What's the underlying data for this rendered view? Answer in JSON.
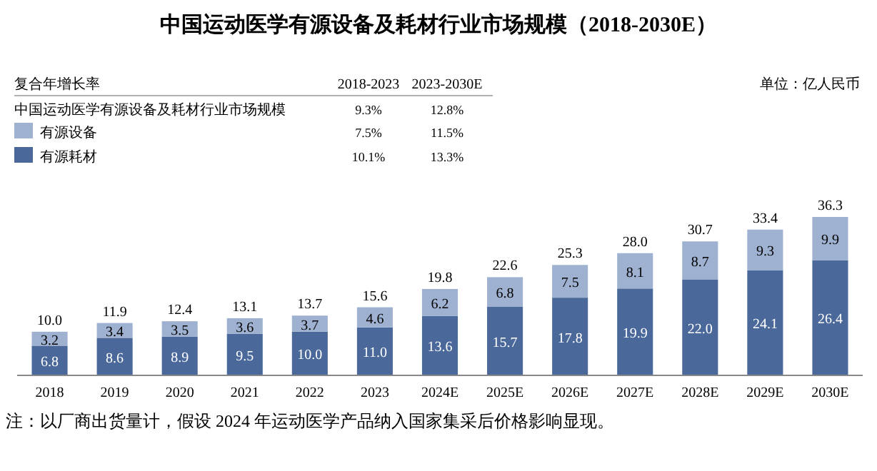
{
  "chart_data": {
    "type": "bar",
    "stacked": true,
    "legend": "top left",
    "title": "中国运动医学有源设备及耗材行业市场规模（2018-2030E）",
    "categories": [
      "2018",
      "2019",
      "2020",
      "2021",
      "2022",
      "2023",
      "2024E",
      "2025E",
      "2026E",
      "2027E",
      "2028E",
      "2029E",
      "2030E"
    ],
    "series": [
      {
        "name": "有源耗材",
        "color": "#4a6899",
        "values": [
          6.8,
          8.6,
          8.9,
          9.5,
          10.0,
          11.0,
          13.6,
          15.7,
          17.8,
          19.9,
          22.0,
          24.1,
          26.4
        ],
        "value_labels": [
          "6.8",
          "8.6",
          "8.9",
          "9.5",
          "10.0",
          "11.0",
          "13.6",
          "15.7",
          "17.8",
          "19.9",
          "22.0",
          "24.1",
          "26.4"
        ]
      },
      {
        "name": "有源设备",
        "color": "#9fb1d0",
        "values": [
          3.2,
          3.4,
          3.5,
          3.6,
          3.7,
          4.6,
          6.2,
          6.8,
          7.5,
          8.1,
          8.7,
          9.3,
          9.9
        ],
        "value_labels": [
          "3.2",
          "3.4",
          "3.5",
          "3.6",
          "3.7",
          "4.6",
          "6.2",
          "6.8",
          "7.5",
          "8.1",
          "8.7",
          "9.3",
          "9.9"
        ]
      }
    ],
    "totals": [
      "10.0",
      "11.9",
      "12.4",
      "13.1",
      "13.7",
      "15.6",
      "19.8",
      "22.6",
      "25.3",
      "28.0",
      "30.7",
      "33.4",
      "36.3"
    ],
    "annotations": [
      "复合年增长率",
      "2018-2023",
      "2023-2030E",
      "中国运动医学有源设备及耗材行业市场规模",
      "9.3%",
      "12.8%",
      "7.5%",
      "11.5%",
      "10.1%",
      "13.3%",
      "单位：亿人民币",
      "注：以厂商出货量计，假设 2024 年运动医学产品纳入国家集采后价格影响显现。"
    ]
  }
}
